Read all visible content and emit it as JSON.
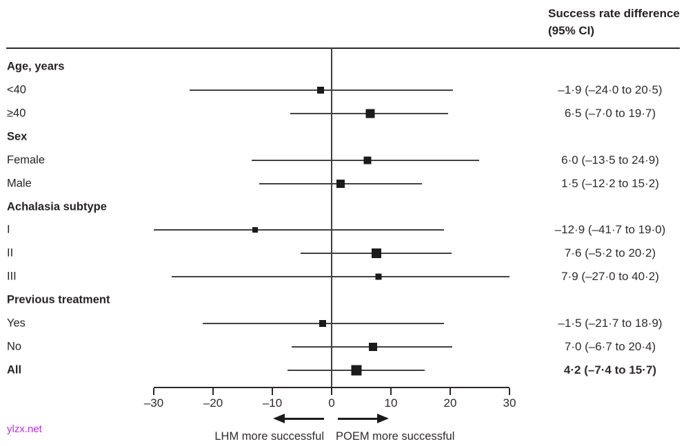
{
  "header": {
    "title_line1": "Success rate difference",
    "title_line2": "(95% CI)"
  },
  "watermark": "ylzx.net",
  "colors": {
    "text": "#262223",
    "rule": "#2b2728",
    "ci_line": "#424042",
    "marker": "#1b1b1b",
    "watermark": "#bf2ee2"
  },
  "chart_data": {
    "type": "scatter",
    "subtype": "forest-plot",
    "title": "Success rate difference (95% CI)",
    "xlabel": "",
    "ylabel": "",
    "xlim": [
      -30,
      30
    ],
    "grid": false,
    "zero_reference_line": 0,
    "axis_ticks": [
      {
        "value": -30,
        "label": "–30"
      },
      {
        "value": -20,
        "label": "–20"
      },
      {
        "value": -10,
        "label": "–10"
      },
      {
        "value": 0,
        "label": "0"
      },
      {
        "value": 10,
        "label": "10"
      },
      {
        "value": 20,
        "label": "20"
      },
      {
        "value": 30,
        "label": "30"
      }
    ],
    "direction_labels": {
      "left": "LHM more successful",
      "right": "POEM more successful"
    },
    "rows": [
      {
        "kind": "header",
        "label": "Age, years"
      },
      {
        "kind": "data",
        "label": "<40",
        "estimate": -1.9,
        "ci_low": -24.0,
        "ci_high": 20.5,
        "display": "–1·9 (–24·0 to 20·5)",
        "marker_size": 10,
        "bold": false
      },
      {
        "kind": "data",
        "label": "≥40",
        "estimate": 6.5,
        "ci_low": -7.0,
        "ci_high": 19.7,
        "display": "6·5 (–7·0 to 19·7)",
        "marker_size": 13,
        "bold": false
      },
      {
        "kind": "header",
        "label": "Sex"
      },
      {
        "kind": "data",
        "label": "Female",
        "estimate": 6.0,
        "ci_low": -13.5,
        "ci_high": 24.9,
        "display": "6·0 (–13·5 to 24·9)",
        "marker_size": 11,
        "bold": false
      },
      {
        "kind": "data",
        "label": "Male",
        "estimate": 1.5,
        "ci_low": -12.2,
        "ci_high": 15.2,
        "display": "1·5 (–12·2 to 15·2)",
        "marker_size": 12,
        "bold": false
      },
      {
        "kind": "header",
        "label": "Achalasia subtype"
      },
      {
        "kind": "data",
        "label": "I",
        "estimate": -12.9,
        "ci_low": -41.7,
        "ci_high": 19.0,
        "display": "–12·9 (–41·7 to 19·0)",
        "marker_size": 8,
        "bold": false
      },
      {
        "kind": "data",
        "label": "II",
        "estimate": 7.6,
        "ci_low": -5.2,
        "ci_high": 20.2,
        "display": "7·6 (–5·2 to 20·2)",
        "marker_size": 14,
        "bold": false
      },
      {
        "kind": "data",
        "label": "III",
        "estimate": 7.9,
        "ci_low": -27.0,
        "ci_high": 40.2,
        "display": "7·9 (–27·0 to 40·2)",
        "marker_size": 9,
        "bold": false
      },
      {
        "kind": "header",
        "label": "Previous treatment"
      },
      {
        "kind": "data",
        "label": "Yes",
        "estimate": -1.5,
        "ci_low": -21.7,
        "ci_high": 18.9,
        "display": "–1·5 (–21·7 to 18·9)",
        "marker_size": 10,
        "bold": false
      },
      {
        "kind": "data",
        "label": "No",
        "estimate": 7.0,
        "ci_low": -6.7,
        "ci_high": 20.4,
        "display": "7·0 (–6·7 to 20·4)",
        "marker_size": 12,
        "bold": false
      },
      {
        "kind": "data",
        "label": "All",
        "estimate": 4.2,
        "ci_low": -7.4,
        "ci_high": 15.7,
        "display": "4·2 (–7·4 to 15·7)",
        "marker_size": 15,
        "bold": true
      }
    ]
  }
}
